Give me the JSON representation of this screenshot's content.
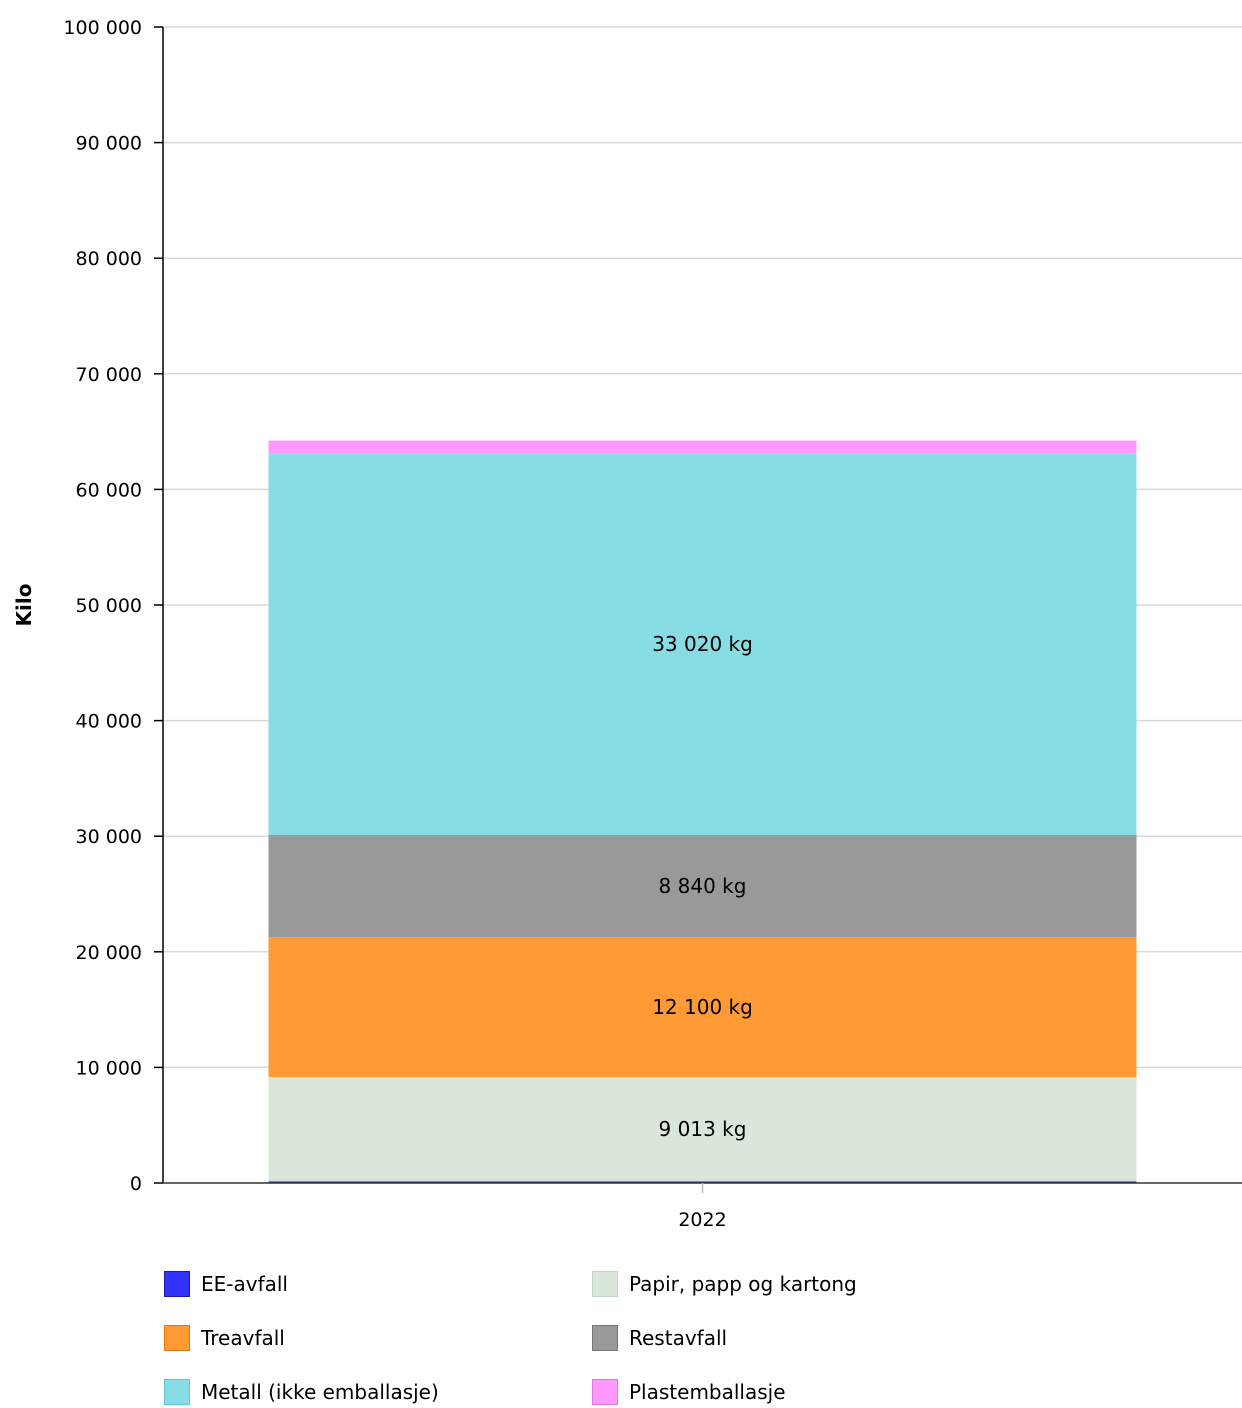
{
  "chart_data": {
    "type": "bar",
    "stacked": true,
    "categories": [
      "2022"
    ],
    "ylabel": "Kilo",
    "ylim": [
      0,
      100000
    ],
    "yticks": [
      0,
      10000,
      20000,
      30000,
      40000,
      50000,
      60000,
      70000,
      80000,
      90000,
      100000
    ],
    "ytick_labels": [
      "0",
      "10 000",
      "20 000",
      "30 000",
      "40 000",
      "50 000",
      "60 000",
      "70 000",
      "80 000",
      "90 000",
      "100 000"
    ],
    "grid": true,
    "legend_position": "bottom",
    "series": [
      {
        "name": "EE-avfall",
        "values": [
          150
        ],
        "color": "#3333ff",
        "border": "#1a1aa8",
        "label": ""
      },
      {
        "name": "Papir, papp og kartong",
        "values": [
          9013
        ],
        "color": "#dbe6db",
        "border": "#c4d4c4",
        "label": "9 013 kg"
      },
      {
        "name": "Treavfall",
        "values": [
          12100
        ],
        "color": "#ff9a35",
        "border": "#e07a10",
        "label": "12 100 kg"
      },
      {
        "name": "Restavfall",
        "values": [
          8840
        ],
        "color": "#999999",
        "border": "#777777",
        "label": "8 840 kg"
      },
      {
        "name": "Metall (ikke emballasje)",
        "values": [
          33020
        ],
        "color": "#88dce3",
        "border": "#5cc8d2",
        "label": "33 020 kg"
      },
      {
        "name": "Plastemballasje",
        "values": [
          1100
        ],
        "color": "#ff99ff",
        "border": "#e477e4",
        "label": ""
      }
    ]
  }
}
